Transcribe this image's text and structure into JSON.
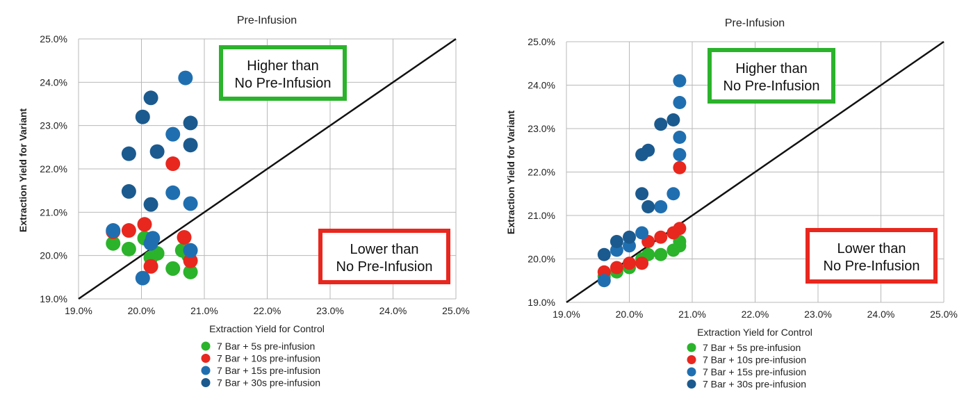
{
  "colors": {
    "5s": "#2bb32b",
    "10s": "#e8271e",
    "15s": "#1f6fb0",
    "30s": "#1b5a8e",
    "green_box": "#2bb32b",
    "red_box": "#e8271e",
    "diagonal": "#111111",
    "grid": "#b8b8b8"
  },
  "chart_data": [
    {
      "type": "scatter",
      "title": "Pre-Infusion",
      "xlabel": "Extraction Yield for Control",
      "ylabel": "Extraction Yield for Variant",
      "xlim": [
        19.0,
        25.0
      ],
      "ylim": [
        19.0,
        25.0
      ],
      "x_ticks": [
        "19.0%",
        "20.0%",
        "21.0%",
        "22.0%",
        "23.0%",
        "24.0%",
        "25.0%"
      ],
      "y_ticks": [
        "19.0%",
        "20.0%",
        "21.0%",
        "22.0%",
        "23.0%",
        "24.0%",
        "25.0%"
      ],
      "grid": true,
      "reference_line": "y = x",
      "annotations": {
        "higher": [
          "Higher than",
          "No Pre-Infusion"
        ],
        "lower": [
          "Lower than",
          "No Pre-Infusion"
        ]
      },
      "legend_position": "bottom",
      "series": [
        {
          "name": "7 Bar + 5s pre-infusion",
          "color_key": "5s",
          "points": [
            [
              19.55,
              20.28
            ],
            [
              19.8,
              20.15
            ],
            [
              20.05,
              20.4
            ],
            [
              20.15,
              19.95
            ],
            [
              20.25,
              20.05
            ],
            [
              20.5,
              19.7
            ],
            [
              20.65,
              20.12
            ],
            [
              20.75,
              20.0
            ],
            [
              20.78,
              19.62
            ]
          ]
        },
        {
          "name": "7 Bar + 10s pre-infusion",
          "color_key": "10s",
          "points": [
            [
              19.55,
              20.55
            ],
            [
              19.8,
              20.58
            ],
            [
              20.05,
              20.72
            ],
            [
              20.15,
              19.75
            ],
            [
              20.5,
              22.12
            ],
            [
              20.68,
              20.42
            ],
            [
              20.78,
              19.88
            ]
          ]
        },
        {
          "name": "7 Bar + 15s pre-infusion",
          "color_key": "15s",
          "points": [
            [
              19.55,
              20.58
            ],
            [
              20.02,
              19.48
            ],
            [
              20.15,
              20.28
            ],
            [
              20.18,
              20.4
            ],
            [
              20.5,
              22.8
            ],
            [
              20.5,
              21.45
            ],
            [
              20.7,
              24.1
            ],
            [
              20.78,
              21.2
            ],
            [
              20.78,
              20.12
            ]
          ]
        },
        {
          "name": "7 Bar + 30s pre-infusion",
          "color_key": "30s",
          "points": [
            [
              19.8,
              22.35
            ],
            [
              19.8,
              21.48
            ],
            [
              20.02,
              23.2
            ],
            [
              20.15,
              23.64
            ],
            [
              20.15,
              21.18
            ],
            [
              20.25,
              22.4
            ],
            [
              20.78,
              23.06
            ],
            [
              20.78,
              22.55
            ]
          ]
        }
      ]
    },
    {
      "type": "scatter",
      "title": "Pre-Infusion",
      "xlabel": "Extraction Yield for Control",
      "ylabel": "Extraction Yield for Variant",
      "xlim": [
        19.0,
        25.0
      ],
      "ylim": [
        19.0,
        25.0
      ],
      "x_ticks": [
        "19.0%",
        "20.0%",
        "21.0%",
        "22.0%",
        "23.0%",
        "24.0%",
        "25.0%"
      ],
      "y_ticks": [
        "19.0%",
        "20.0%",
        "21.0%",
        "22.0%",
        "23.0%",
        "24.0%",
        "25.0%"
      ],
      "grid": true,
      "reference_line": "y = x",
      "annotations": {
        "higher": [
          "Higher than",
          "No Pre-Infusion"
        ],
        "lower": [
          "Lower than",
          "No Pre-Infusion"
        ]
      },
      "legend_position": "bottom",
      "series": [
        {
          "name": "7 Bar + 5s pre-infusion",
          "color_key": "5s",
          "points": [
            [
              19.6,
              19.6
            ],
            [
              19.8,
              19.7
            ],
            [
              20.0,
              19.8
            ],
            [
              20.2,
              20.0
            ],
            [
              20.3,
              20.1
            ],
            [
              20.5,
              20.1
            ],
            [
              20.7,
              20.2
            ],
            [
              20.8,
              20.3
            ],
            [
              20.8,
              20.4
            ]
          ]
        },
        {
          "name": "7 Bar + 10s pre-infusion",
          "color_key": "10s",
          "points": [
            [
              19.6,
              19.7
            ],
            [
              19.8,
              19.8
            ],
            [
              20.0,
              19.9
            ],
            [
              20.2,
              19.9
            ],
            [
              20.3,
              20.4
            ],
            [
              20.5,
              20.5
            ],
            [
              20.7,
              20.6
            ],
            [
              20.8,
              20.7
            ],
            [
              20.8,
              22.1
            ]
          ]
        },
        {
          "name": "7 Bar + 15s pre-infusion",
          "color_key": "15s",
          "points": [
            [
              19.6,
              19.5
            ],
            [
              19.8,
              20.2
            ],
            [
              20.0,
              20.3
            ],
            [
              20.2,
              20.6
            ],
            [
              20.5,
              21.2
            ],
            [
              20.7,
              21.5
            ],
            [
              20.8,
              22.4
            ],
            [
              20.8,
              22.8
            ],
            [
              20.8,
              23.6
            ],
            [
              20.8,
              24.1
            ]
          ]
        },
        {
          "name": "7 Bar + 30s pre-infusion",
          "color_key": "30s",
          "points": [
            [
              19.6,
              20.1
            ],
            [
              19.8,
              20.4
            ],
            [
              20.0,
              20.5
            ],
            [
              20.2,
              21.5
            ],
            [
              20.3,
              21.2
            ],
            [
              20.2,
              22.4
            ],
            [
              20.3,
              22.5
            ],
            [
              20.5,
              23.1
            ],
            [
              20.7,
              23.2
            ]
          ]
        }
      ]
    }
  ]
}
